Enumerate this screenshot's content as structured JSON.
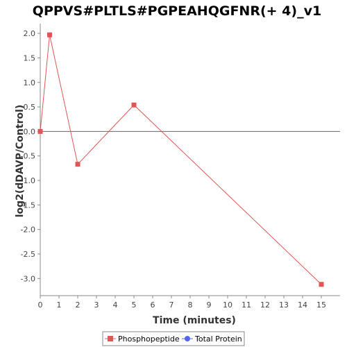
{
  "chart_data": {
    "type": "line",
    "title": "QPPVS#PLTLS#PGPEAHQGFNR(+ 4)_v1",
    "xlabel": "Time (minutes)",
    "ylabel": "log2(dDAVP/Control)",
    "xlim": [
      0,
      16
    ],
    "ylim": [
      -3.35,
      2.2
    ],
    "xticks": [
      0,
      1,
      2,
      3,
      4,
      5,
      6,
      7,
      8,
      9,
      10,
      11,
      12,
      13,
      14,
      15
    ],
    "yticks": [
      2.0,
      1.5,
      1.0,
      0.5,
      0.0,
      -0.5,
      -1.0,
      -1.5,
      -2.0,
      -2.5,
      -3.0
    ],
    "xtick_labels": [
      "0",
      "1",
      "2",
      "3",
      "4",
      "5",
      "6",
      "7",
      "8",
      "9",
      "10",
      "11",
      "12",
      "13",
      "14",
      "15"
    ],
    "ytick_labels": [
      "2.0",
      "1.5",
      "1.0",
      "0.5",
      "0.0",
      "-0.5",
      "-1.0",
      "-1.5",
      "-2.0",
      "-2.5",
      "-3.0"
    ],
    "grid": false,
    "zero_line": true,
    "legend_position": "bottom",
    "series": [
      {
        "name": "Phosphopeptide",
        "color": "#e05555",
        "marker": "square",
        "x": [
          0,
          0.5,
          2,
          5,
          15
        ],
        "y": [
          0.0,
          1.97,
          -0.67,
          0.54,
          -3.12
        ]
      }
    ],
    "legend": [
      {
        "label": "Phosphopeptide",
        "color": "#e05555",
        "marker": "square"
      },
      {
        "label": "Total Protein",
        "color": "#5566ee",
        "marker": "circle"
      }
    ]
  }
}
